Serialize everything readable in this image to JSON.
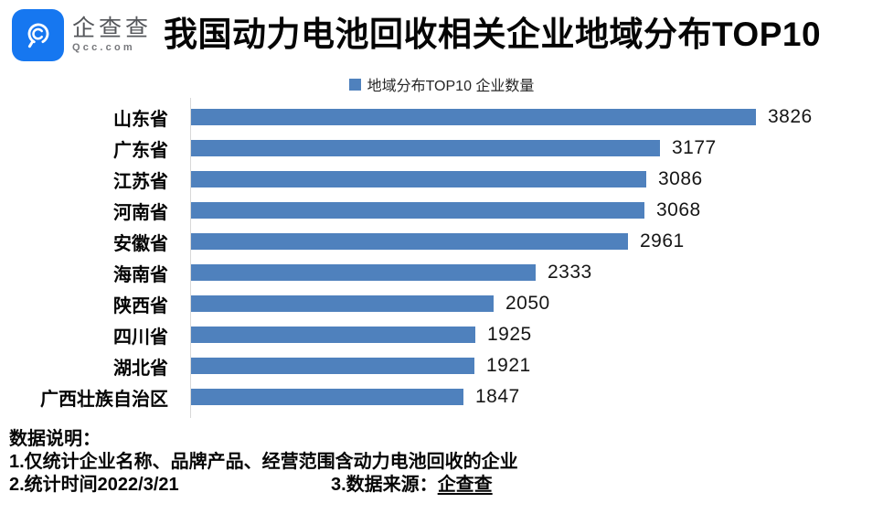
{
  "brand": {
    "icon": "qcc-magnifier-icon",
    "name": "企查查",
    "domain": "Qcc.com"
  },
  "title": "我国动力电池回收相关企业地域分布TOP10",
  "legend": {
    "label": "地域分布TOP10 企业数量",
    "color": "#4F81BD"
  },
  "chart_data": {
    "type": "bar",
    "orientation": "horizontal",
    "title": "我国动力电池回收相关企业地域分布TOP10",
    "legend": "地域分布TOP10 企业数量",
    "categories": [
      "山东省",
      "广东省",
      "江苏省",
      "河南省",
      "安徽省",
      "海南省",
      "陕西省",
      "四川省",
      "湖北省",
      "广西壮族自治区"
    ],
    "values": [
      3826,
      3177,
      3086,
      3068,
      2961,
      2333,
      2050,
      1925,
      1921,
      1847
    ],
    "bar_color": "#4F81BD",
    "value_labels_shown": true,
    "grid": false,
    "xlim": [
      0,
      4000
    ]
  },
  "notes": {
    "heading": "数据说明：",
    "line1": "1.仅统计企业名称、品牌产品、经营范围含动力电池回收的企业",
    "line2_left": "2.统计时间2022/3/21",
    "line2_right_prefix": "3.数据来源：",
    "line2_right_source": "企查查"
  }
}
